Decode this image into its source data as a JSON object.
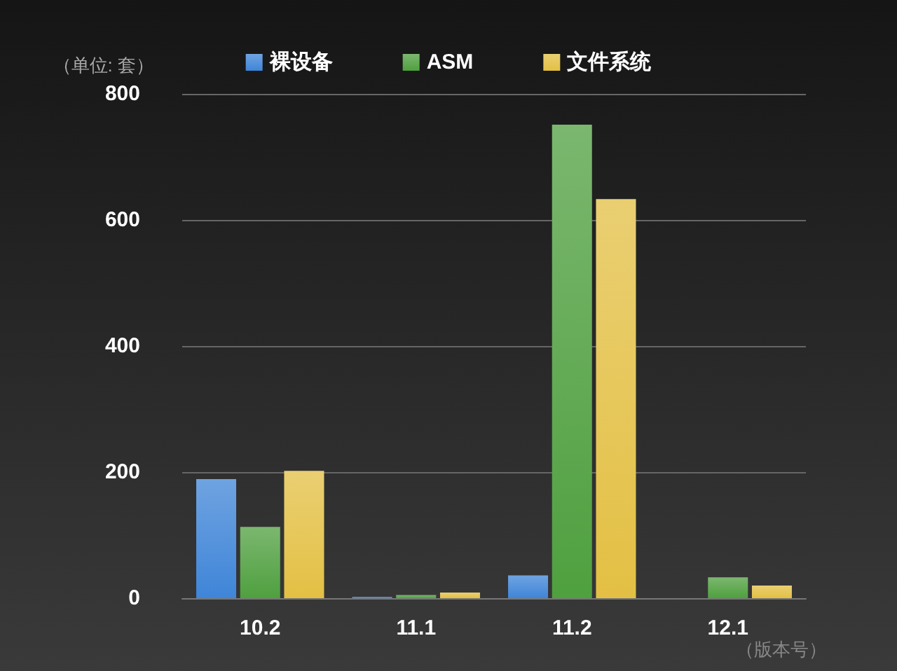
{
  "chart_data": {
    "type": "bar",
    "ylabel": "（单位: 套）",
    "xlabel": "（版本号）",
    "categories": [
      "10.2",
      "11.1",
      "11.2",
      "12.1"
    ],
    "series": [
      {
        "name": "裸设备",
        "color": "#3f85d8",
        "values": [
          189,
          2,
          36,
          0
        ]
      },
      {
        "name": "ASM",
        "color": "#4fa03f",
        "values": [
          113,
          5,
          751,
          33
        ]
      },
      {
        "name": "文件系统",
        "color": "#e3c044",
        "values": [
          202,
          9,
          633,
          20
        ]
      }
    ],
    "ylim": [
      0,
      800
    ],
    "yticks": [
      0,
      200,
      400,
      600,
      800
    ],
    "grid": "y",
    "legend": "top"
  }
}
